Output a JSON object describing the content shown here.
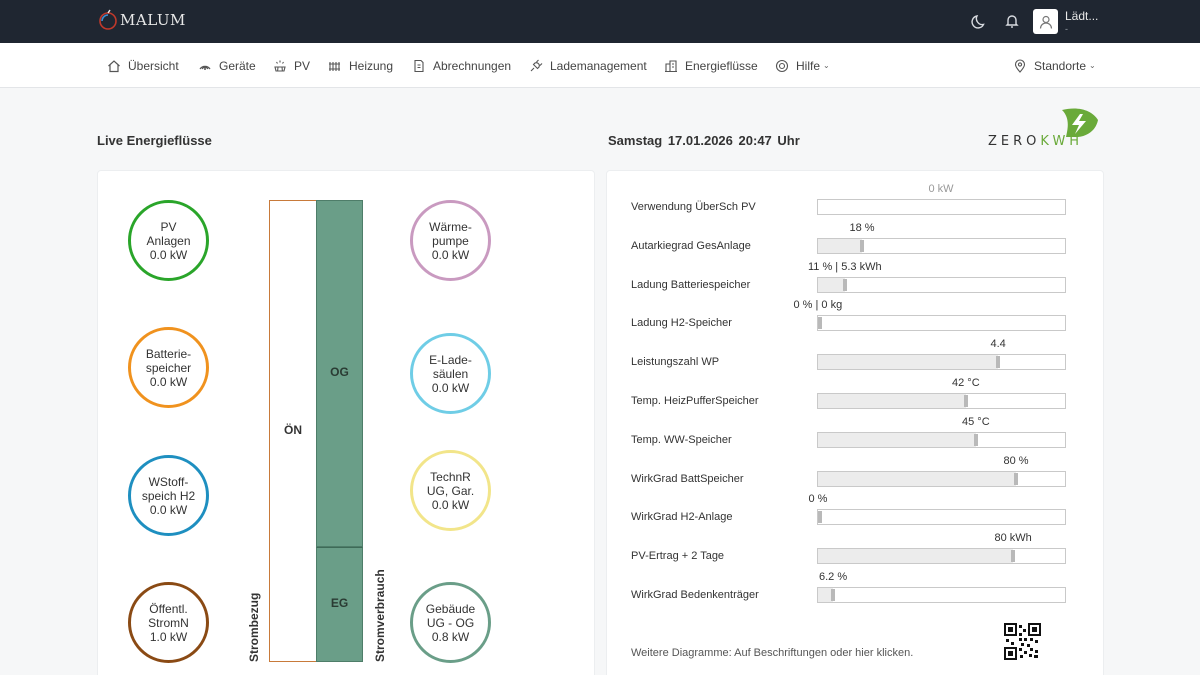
{
  "app": {
    "logo_text": "MALUM"
  },
  "user": {
    "name": "Lädt...",
    "sub": "-"
  },
  "nav": {
    "items": [
      {
        "label": "Übersicht",
        "icon": "home-icon"
      },
      {
        "label": "Geräte",
        "icon": "devices-icon"
      },
      {
        "label": "PV",
        "icon": "solar-panel-icon"
      },
      {
        "label": "Heizung",
        "icon": "radiator-icon"
      },
      {
        "label": "Abrechnungen",
        "icon": "invoice-icon"
      },
      {
        "label": "Lademanagement",
        "icon": "charging-plug-icon"
      },
      {
        "label": "Energieflüsse",
        "icon": "building-icon"
      },
      {
        "label": "Hilfe",
        "icon": "help-lifebuoy-icon"
      }
    ],
    "locations": "Standorte"
  },
  "header": {
    "title": "Live Energieflüsse",
    "day": "Samstag",
    "date": "17.01.2026",
    "time": "20:47 Uhr",
    "brand_zero": "ZERO",
    "brand_kwh": "KWH"
  },
  "flow": {
    "sources": [
      {
        "line1": "PV",
        "line2": "Anlagen",
        "value": "0.0 kW",
        "color": "#2aa52a"
      },
      {
        "line1": "Batterie-",
        "line2": "speicher",
        "value": "0.0 kW",
        "color": "#f0921e"
      },
      {
        "line1": "WStoff-",
        "line2": "speich H2",
        "value": "0.0 kW",
        "color": "#1e8fc0"
      },
      {
        "line1": "Öffentl.",
        "line2": "StromN",
        "value": "1.0 kW",
        "color": "#8a4a14"
      }
    ],
    "consumers": [
      {
        "line1": "Wärme-",
        "line2": "pumpe",
        "value": "0.0 kW",
        "color": "#c99ac0"
      },
      {
        "line1": "E-Lade-",
        "line2": "säulen",
        "value": "0.0 kW",
        "color": "#6fcde6"
      },
      {
        "line1": "TechnR",
        "line2": "UG, Gar.",
        "value": "0.0 kW",
        "color": "#f2e58a"
      },
      {
        "line1": "Gebäude",
        "line2": "UG - OG",
        "value": "0.8 kW",
        "color": "#6a9e88"
      }
    ],
    "on_label": "ÖN",
    "og_label": "OG",
    "eg_label": "EG",
    "strombezug": "Strombezug",
    "stromverbrauch": "Stromverbrauch"
  },
  "stats": [
    {
      "label": "Verwendung ÜberSch PV",
      "value": "0 kW",
      "fraction": 0.0,
      "marker": false
    },
    {
      "label": "Autarkiegrad GesAnlage",
      "value": "18 %",
      "fraction": 0.18,
      "marker": true
    },
    {
      "label": "Ladung Batteriespeicher",
      "value": "11 % | 5.3 kWh",
      "fraction": 0.11,
      "marker": true
    },
    {
      "label": "Ladung H2-Speicher",
      "value": "0 % | 0 kg",
      "fraction": 0.0,
      "marker": true
    },
    {
      "label": "Leistungszahl WP",
      "value": "4.4",
      "fraction": 0.73,
      "marker": true
    },
    {
      "label": "Temp. HeizPufferSpeicher",
      "value": "42 °C",
      "fraction": 0.6,
      "marker": true
    },
    {
      "label": "Temp. WW-Speicher",
      "value": "45 °C",
      "fraction": 0.64,
      "marker": true
    },
    {
      "label": "WirkGrad BattSpeicher",
      "value": "80 %",
      "fraction": 0.8,
      "marker": true
    },
    {
      "label": "WirkGrad H2-Anlage",
      "value": "0 %",
      "fraction": 0.0,
      "marker": true
    },
    {
      "label": "PV-Ertrag + 2 Tage",
      "value": "80 kWh",
      "fraction": 0.79,
      "marker": true
    },
    {
      "label": "WirkGrad Bedenkenträger",
      "value": "6.2 %",
      "fraction": 0.062,
      "marker": true
    }
  ],
  "footnote": "Weitere Diagramme: Auf Beschriftungen oder hier klicken."
}
